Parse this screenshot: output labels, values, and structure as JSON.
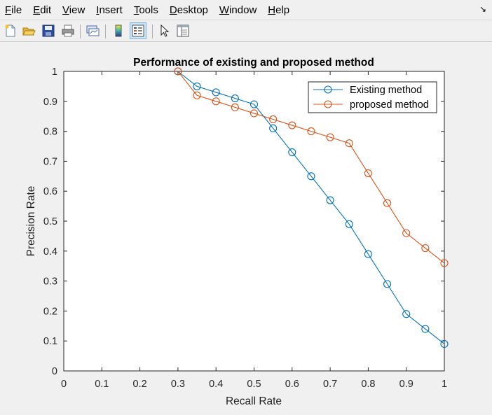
{
  "menu": {
    "items": [
      {
        "pre": "",
        "u": "F",
        "post": "ile"
      },
      {
        "pre": "",
        "u": "E",
        "post": "dit"
      },
      {
        "pre": "",
        "u": "V",
        "post": "iew"
      },
      {
        "pre": "",
        "u": "I",
        "post": "nsert"
      },
      {
        "pre": "",
        "u": "T",
        "post": "ools"
      },
      {
        "pre": "",
        "u": "D",
        "post": "esktop"
      },
      {
        "pre": "",
        "u": "W",
        "post": "indow"
      },
      {
        "pre": "",
        "u": "H",
        "post": "elp"
      }
    ],
    "dock_arrow": "↘"
  },
  "toolbar": {
    "icons": [
      "new-file-icon",
      "open-folder-icon",
      "save-icon",
      "print-icon",
      "link-plot-icon",
      "insert-colorbar-icon",
      "insert-legend-icon",
      "edit-plot-arrow-icon",
      "property-inspector-icon"
    ]
  },
  "colors": {
    "existing": "#0072BD",
    "proposed": "#D95319"
  },
  "chart_data": {
    "type": "line",
    "title": "Performance of existing and proposed method",
    "xlabel": "Recall Rate",
    "ylabel": "Precision Rate",
    "xlim": [
      0,
      1
    ],
    "ylim": [
      0,
      1
    ],
    "xticks": [
      "0",
      "0.1",
      "0.2",
      "0.3",
      "0.4",
      "0.5",
      "0.6",
      "0.7",
      "0.8",
      "0.9",
      "1"
    ],
    "yticks": [
      "0",
      "0.1",
      "0.2",
      "0.3",
      "0.4",
      "0.5",
      "0.6",
      "0.7",
      "0.8",
      "0.9",
      "1"
    ],
    "grid": false,
    "legend_position": "top-right",
    "marker": "circle",
    "series": [
      {
        "name": "Existing method",
        "x": [
          0.3,
          0.35,
          0.4,
          0.45,
          0.5,
          0.55,
          0.6,
          0.65,
          0.7,
          0.75,
          0.8,
          0.85,
          0.9,
          0.95,
          1.0
        ],
        "y": [
          1.0,
          0.95,
          0.93,
          0.91,
          0.89,
          0.81,
          0.73,
          0.65,
          0.57,
          0.49,
          0.39,
          0.29,
          0.19,
          0.14,
          0.09
        ]
      },
      {
        "name": "proposed method",
        "x": [
          0.3,
          0.35,
          0.4,
          0.45,
          0.5,
          0.55,
          0.6,
          0.65,
          0.7,
          0.75,
          0.8,
          0.85,
          0.9,
          0.95,
          1.0
        ],
        "y": [
          1.0,
          0.92,
          0.9,
          0.88,
          0.86,
          0.84,
          0.82,
          0.8,
          0.78,
          0.76,
          0.66,
          0.56,
          0.46,
          0.41,
          0.36
        ]
      }
    ]
  }
}
